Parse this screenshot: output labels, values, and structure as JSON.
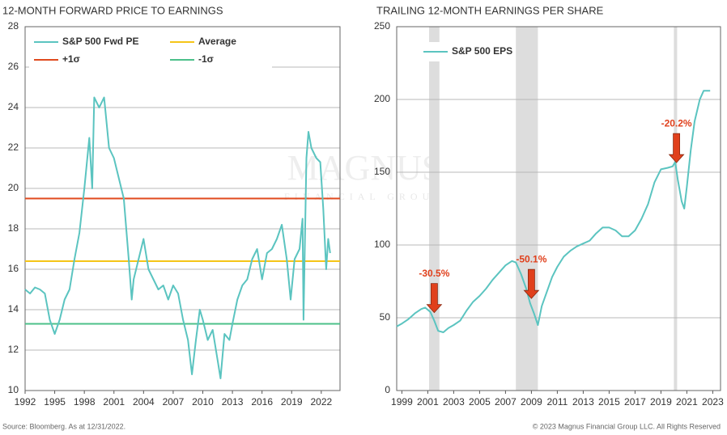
{
  "chart_data": [
    {
      "type": "line",
      "title": "12-MONTH FORWARD PRICE TO EARNINGS",
      "x": [
        1992.0,
        1992.5,
        1993.0,
        1993.5,
        1994.0,
        1994.5,
        1995.0,
        1995.5,
        1996.0,
        1996.5,
        1997.0,
        1997.5,
        1998.0,
        1998.5,
        1998.8,
        1999.0,
        1999.5,
        2000.0,
        2000.5,
        2001.0,
        2001.5,
        2002.0,
        2002.5,
        2002.8,
        2003.0,
        2003.5,
        2004.0,
        2004.5,
        2005.0,
        2005.5,
        2006.0,
        2006.5,
        2007.0,
        2007.5,
        2008.0,
        2008.5,
        2008.9,
        2009.3,
        2009.7,
        2010.0,
        2010.5,
        2011.0,
        2011.5,
        2011.8,
        2012.2,
        2012.7,
        2013.0,
        2013.5,
        2014.0,
        2014.5,
        2015.0,
        2015.5,
        2016.0,
        2016.5,
        2017.0,
        2017.5,
        2018.0,
        2018.5,
        2018.9,
        2019.3,
        2019.8,
        2020.1,
        2020.2,
        2020.5,
        2020.7,
        2021.0,
        2021.5,
        2021.9,
        2022.2,
        2022.5,
        2022.7,
        2022.9
      ],
      "series": [
        {
          "name": "S&P 500 Fwd PE",
          "color": "#5bc4c0",
          "values": [
            15.0,
            14.8,
            15.1,
            15.0,
            14.8,
            13.5,
            12.8,
            13.5,
            14.5,
            15.0,
            16.5,
            17.8,
            20.0,
            22.5,
            20.0,
            24.5,
            24.0,
            24.5,
            22.0,
            21.5,
            20.5,
            19.5,
            16.5,
            14.5,
            15.5,
            16.5,
            17.5,
            16.0,
            15.5,
            15.0,
            15.2,
            14.5,
            15.2,
            14.8,
            13.5,
            12.5,
            10.8,
            12.5,
            14.0,
            13.5,
            12.5,
            13.0,
            11.5,
            10.6,
            12.8,
            12.5,
            13.3,
            14.5,
            15.2,
            15.5,
            16.5,
            17.0,
            15.5,
            16.8,
            17.0,
            17.5,
            18.2,
            16.5,
            14.5,
            16.5,
            17.0,
            18.5,
            13.5,
            21.5,
            22.8,
            22.0,
            21.5,
            21.3,
            19.0,
            16.0,
            17.5,
            16.8
          ]
        }
      ],
      "reference_lines": [
        {
          "name": "Average",
          "color": "#f5c518",
          "value": 16.4
        },
        {
          "name": "+1σ",
          "color": "#e04a1e",
          "value": 19.5
        },
        {
          "name": "-1σ",
          "color": "#4cc08a",
          "value": 13.3
        }
      ],
      "xlim": [
        1992,
        2023.9
      ],
      "xticks": [
        1992,
        1995,
        1998,
        2001,
        2004,
        2007,
        2010,
        2013,
        2016,
        2019,
        2022
      ],
      "ylim": [
        10,
        28
      ],
      "yticks": [
        10,
        12,
        14,
        16,
        18,
        20,
        22,
        24,
        26,
        28
      ],
      "grid": true
    },
    {
      "type": "line",
      "title": "TRAILING 12-MONTH EARNINGS PER SHARE",
      "x": [
        1998.6,
        1999.0,
        1999.5,
        2000.0,
        2000.5,
        2000.8,
        2001.2,
        2001.5,
        2001.8,
        2002.2,
        2002.6,
        2003.0,
        2003.5,
        2004.0,
        2004.5,
        2005.0,
        2005.5,
        2006.0,
        2006.5,
        2007.0,
        2007.5,
        2007.8,
        2008.2,
        2008.6,
        2008.9,
        2009.2,
        2009.5,
        2009.8,
        2010.2,
        2010.6,
        2011.0,
        2011.5,
        2012.0,
        2012.5,
        2013.0,
        2013.5,
        2014.0,
        2014.5,
        2015.0,
        2015.5,
        2016.0,
        2016.5,
        2017.0,
        2017.5,
        2018.0,
        2018.5,
        2019.0,
        2019.5,
        2019.9,
        2020.1,
        2020.3,
        2020.6,
        2020.8,
        2021.0,
        2021.3,
        2021.6,
        2022.0,
        2022.3,
        2022.8
      ],
      "series": [
        {
          "name": "S&P 500 EPS",
          "color": "#5bc4c0",
          "values": [
            44,
            46,
            49,
            53,
            56,
            57,
            54,
            48,
            41,
            40,
            43,
            45,
            48,
            55,
            61,
            65,
            70,
            76,
            81,
            86,
            89,
            88,
            80,
            70,
            60,
            53,
            45,
            58,
            68,
            78,
            85,
            92,
            96,
            99,
            101,
            103,
            108,
            112,
            112,
            110,
            106,
            106,
            110,
            118,
            128,
            143,
            152,
            153,
            154,
            157,
            145,
            130,
            125,
            140,
            165,
            185,
            200,
            206,
            206
          ]
        }
      ],
      "shaded_regions": [
        [
          2001.1,
          2001.9
        ],
        [
          2007.8,
          2009.5
        ],
        [
          2020.0,
          2020.25
        ]
      ],
      "shade_color": "#dddddd",
      "annotations": [
        {
          "text": "-30.5%",
          "x": 2001.5
        },
        {
          "text": "-50.1%",
          "x": 2009.0
        },
        {
          "text": "-20.2%",
          "x": 2020.2
        }
      ],
      "xlim": [
        1998.6,
        2023.6
      ],
      "xticks": [
        1999,
        2001,
        2003,
        2005,
        2007,
        2009,
        2011,
        2013,
        2015,
        2017,
        2019,
        2021,
        2023
      ],
      "ylim": [
        0,
        250
      ],
      "yticks": [
        0,
        50,
        100,
        150,
        200,
        250
      ],
      "grid": true
    }
  ],
  "watermark": {
    "name": "MAGNUS",
    "tagline": "FINANCIAL GROUP"
  },
  "footer": {
    "source": "Source: Bloomberg. As at 12/31/2022.",
    "copyright": "© 2023 Magnus Financial Group LLC. All Rights Reserved"
  }
}
